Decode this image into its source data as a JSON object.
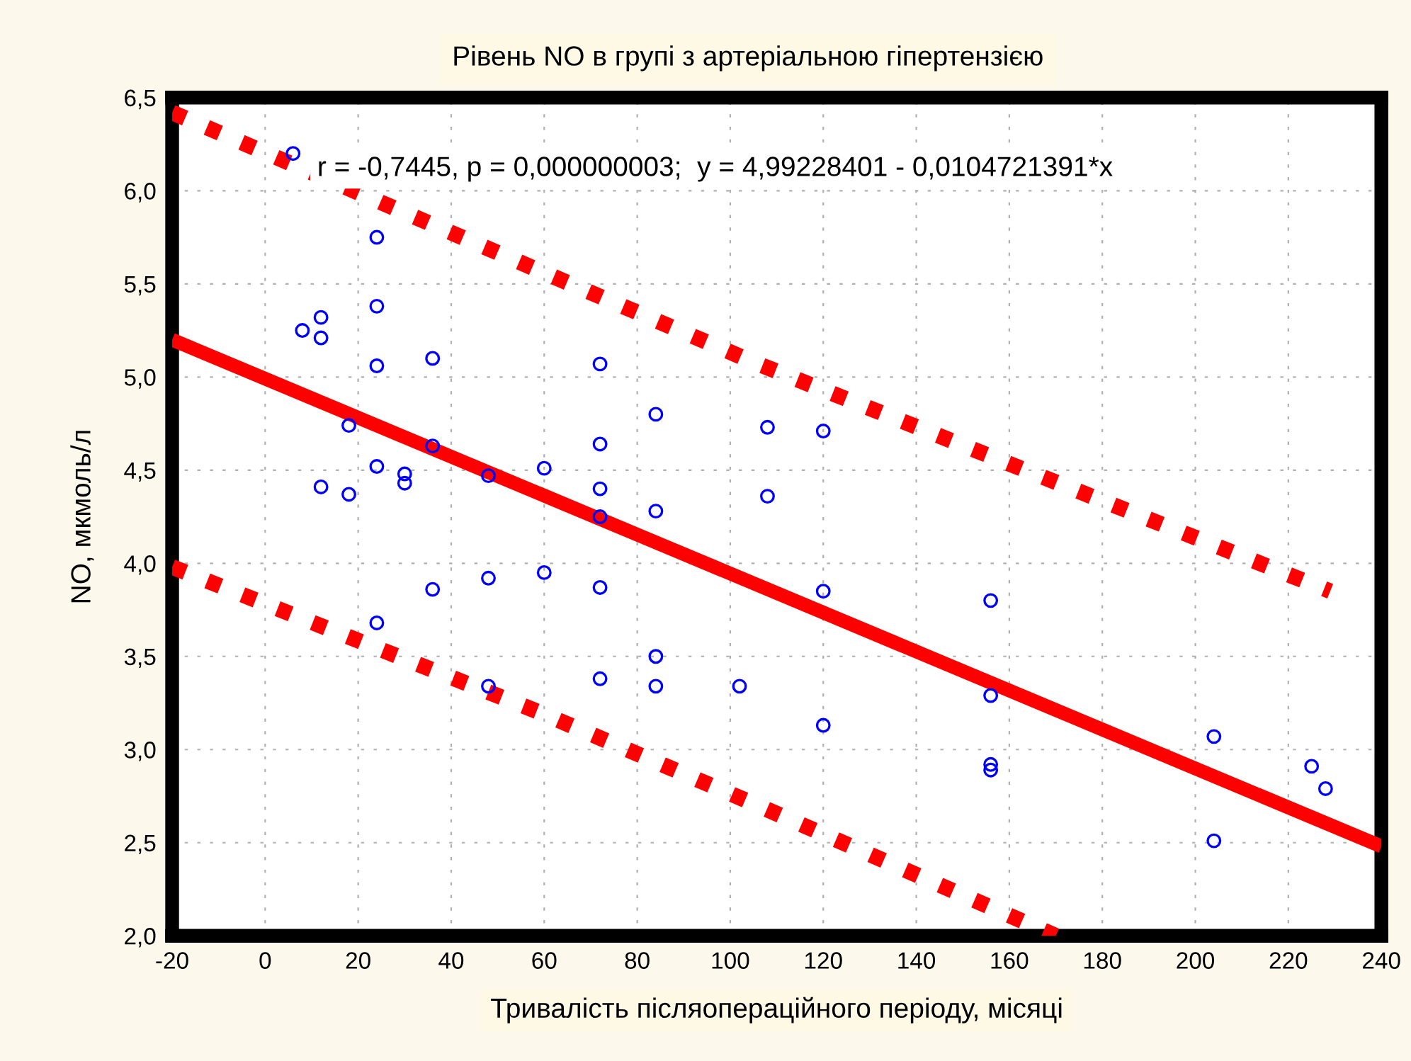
{
  "chart_data": {
    "type": "scatter",
    "title": "Рівень NO в групі з артеріальною гіпертензією",
    "xlabel": "Тривалість післяопераційного періоду, місяці",
    "ylabel": "NO, мкмоль/л",
    "annotations": [
      "r = -0,7445, p = 0,000000003;  y = 4,99228401 - 0,0104721391*x"
    ],
    "xlim": [
      -20,
      240
    ],
    "ylim": [
      2.0,
      6.5
    ],
    "xticks": [
      -20,
      0,
      20,
      40,
      60,
      80,
      100,
      120,
      140,
      160,
      180,
      200,
      220,
      240
    ],
    "yticks": [
      {
        "value": 2.0,
        "label": "2,0"
      },
      {
        "value": 2.5,
        "label": "2,5"
      },
      {
        "value": 3.0,
        "label": "3,0"
      },
      {
        "value": 3.5,
        "label": "3,5"
      },
      {
        "value": 4.0,
        "label": "4,0"
      },
      {
        "value": 4.5,
        "label": "4,5"
      },
      {
        "value": 5.0,
        "label": "5,0"
      },
      {
        "value": 5.5,
        "label": "5,5"
      },
      {
        "value": 6.0,
        "label": "6,0"
      },
      {
        "value": 6.5,
        "label": "6,5"
      }
    ],
    "grid": true,
    "legend": false,
    "series": [
      {
        "color": "#0000ff",
        "marker": "circle",
        "x": [
          6,
          24,
          24,
          12,
          8,
          12,
          24,
          36,
          72,
          18,
          84,
          108,
          120,
          36,
          72,
          24,
          30,
          30,
          12,
          18,
          48,
          60,
          72,
          72,
          84,
          108,
          36,
          48,
          60,
          72,
          120,
          24,
          84,
          48,
          72,
          84,
          102,
          120,
          156,
          156,
          156,
          156,
          204,
          204,
          225,
          228
        ],
        "values": [
          6.2,
          5.75,
          5.38,
          5.32,
          5.25,
          5.21,
          5.06,
          5.1,
          5.07,
          4.74,
          4.8,
          4.73,
          4.71,
          4.63,
          4.64,
          4.52,
          4.48,
          4.43,
          4.41,
          4.37,
          4.47,
          4.51,
          4.4,
          4.25,
          4.28,
          4.36,
          3.86,
          3.92,
          3.95,
          3.87,
          3.85,
          3.68,
          3.5,
          3.34,
          3.38,
          3.34,
          3.34,
          3.13,
          3.8,
          3.29,
          2.92,
          2.89,
          3.07,
          2.51,
          2.91,
          2.79
        ]
      },
      {
        "type": "line",
        "color": "#ff0000",
        "line_style": "solid",
        "x": [
          -20,
          240
        ],
        "values": [
          5.2,
          2.48
        ]
      },
      {
        "type": "line",
        "color": "#ff0000",
        "line_style": "dashed",
        "x": [
          -20,
          60,
          105,
          229
        ],
        "values": [
          6.42,
          5.56,
          5.08,
          3.85
        ]
      },
      {
        "type": "line",
        "color": "#ff0000",
        "line_style": "dashed",
        "x": [
          -20,
          60,
          105,
          170
        ],
        "values": [
          3.98,
          3.19,
          2.71,
          2.0
        ]
      }
    ]
  }
}
